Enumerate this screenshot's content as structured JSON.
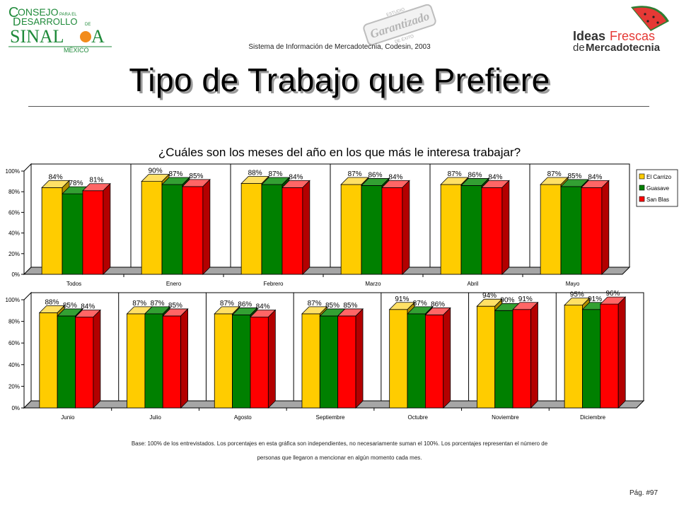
{
  "header": {
    "logo_left": {
      "line1": "ONSEJO",
      "line1_cap": "C",
      "line2": "ESARROLLO",
      "line2_cap": "D",
      "small_para": "PARA EL",
      "small_de": "DE",
      "sina": "SINAL",
      "oa": "A",
      "mexico": "MÉXICO"
    },
    "logo_mid": {
      "top": "ESTUDIO",
      "main": "Garantizado",
      "bottom": "DE ÉXITO"
    },
    "logo_right": {
      "ideas": "Ideas",
      "frescas": "Frescas",
      "de": "de",
      "mercadotecnia": "Mercadotecnia"
    },
    "system_line": "Sistema de Información de Mercadotecnia, Codesin, 2003"
  },
  "title": "Tipo de Trabajo que Prefiere",
  "question": "¿Cuáles son los meses del año en los que más le interesa trabajar?",
  "colors": {
    "el_carrizo": "#FFCC00",
    "guasave": "#008000",
    "san_blas": "#FF0000"
  },
  "chart_data": {
    "type": "bar",
    "ylim": [
      0,
      100
    ],
    "ytick_labels": [
      "0%",
      "20%",
      "40%",
      "60%",
      "80%",
      "100%"
    ],
    "legend": [
      "El Carrizo",
      "Guasave",
      "San Blas"
    ],
    "legend_position": "right",
    "panels": [
      {
        "categories": [
          "Todos",
          "Enero",
          "Febrero",
          "Marzo",
          "Abril",
          "Mayo"
        ],
        "series": [
          {
            "name": "El Carrizo",
            "values": [
              84,
              90,
              88,
              87,
              87,
              87
            ],
            "labels": [
              "84%",
              "90%",
              "88%",
              "87%",
              "87%",
              "87%"
            ]
          },
          {
            "name": "Guasave",
            "values": [
              78,
              87,
              87,
              86,
              86,
              85
            ],
            "labels": [
              "78%",
              "87%",
              "87%",
              "86%",
              "86%",
              "85%"
            ]
          },
          {
            "name": "San Blas",
            "values": [
              81,
              85,
              84,
              84,
              84,
              84
            ],
            "labels": [
              "81%",
              "85%",
              "84%",
              "84%",
              "84%",
              "84%"
            ]
          }
        ]
      },
      {
        "categories": [
          "Junio",
          "Julio",
          "Agosto",
          "Septiembre",
          "Octubre",
          "Noviembre",
          "Diciembre"
        ],
        "series": [
          {
            "name": "El Carrizo",
            "values": [
              88,
              87,
              87,
              87,
              91,
              94,
              95
            ],
            "labels": [
              "88%",
              "87%",
              "87%",
              "87%",
              "91%",
              "94%",
              "95%"
            ]
          },
          {
            "name": "Guasave",
            "values": [
              85,
              87,
              86,
              85,
              87,
              90,
              91
            ],
            "labels": [
              "85%",
              "87%",
              "86%",
              "85%",
              "87%",
              "90%",
              "91%"
            ]
          },
          {
            "name": "San Blas",
            "values": [
              84,
              85,
              84,
              85,
              86,
              91,
              96
            ],
            "labels": [
              "84%",
              "85%",
              "84%",
              "85%",
              "86%",
              "91%",
              "96%"
            ]
          }
        ]
      }
    ]
  },
  "footer": {
    "base_line1": "Base: 100% de los entrevistados.  Los porcentajes en esta gráfica son independientes, no necesariamente suman el 100%. Los porcentajes representan el número de",
    "base_line2": "personas que llegaron a mencionar en algún momento cada mes.",
    "page": "Pág. #97"
  }
}
